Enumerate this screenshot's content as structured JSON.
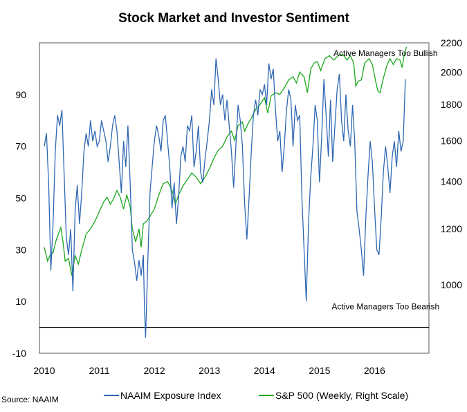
{
  "chart_data": {
    "type": "line",
    "title": "Stock Market and Investor Sentiment",
    "source": "Source: NAAIM",
    "x_tick_labels": [
      "2010",
      "2011",
      "2012",
      "2013",
      "2014",
      "2015",
      "2016"
    ],
    "x_range": [
      2010.0,
      2016.9
    ],
    "y_left": {
      "tick_labels": [
        "-10",
        "10",
        "30",
        "50",
        "70",
        "90"
      ],
      "ticks": [
        -10,
        10,
        30,
        50,
        70,
        90
      ],
      "range": [
        -10,
        110
      ]
    },
    "y_right": {
      "tick_labels": [
        "1000",
        "1200",
        "1400",
        "1600",
        "1800",
        "2000",
        "2200"
      ],
      "ticks": [
        1000,
        1200,
        1400,
        1600,
        1800,
        2000,
        2200
      ],
      "range": [
        800,
        2200
      ],
      "scale": "log"
    },
    "reference_line": {
      "axis": "left",
      "value": 0
    },
    "annotations": [
      {
        "text": "Active Managers Too Bullish",
        "x": 2016.2,
        "y": 106,
        "axis": "left"
      },
      {
        "text": "Active Managers Too Bearish",
        "x": 2016.2,
        "y": 8,
        "axis": "left"
      }
    ],
    "legend_position": "bottom",
    "series": [
      {
        "name": "NAAIM Exposure Index",
        "axis": "left",
        "color": "#2e67b3",
        "points": [
          [
            2010.0,
            70
          ],
          [
            2010.04,
            75
          ],
          [
            2010.08,
            55
          ],
          [
            2010.12,
            22
          ],
          [
            2010.16,
            40
          ],
          [
            2010.2,
            68
          ],
          [
            2010.24,
            82
          ],
          [
            2010.28,
            78
          ],
          [
            2010.32,
            84
          ],
          [
            2010.36,
            60
          ],
          [
            2010.4,
            35
          ],
          [
            2010.44,
            28
          ],
          [
            2010.48,
            38
          ],
          [
            2010.52,
            14
          ],
          [
            2010.56,
            45
          ],
          [
            2010.6,
            55
          ],
          [
            2010.64,
            40
          ],
          [
            2010.68,
            52
          ],
          [
            2010.72,
            68
          ],
          [
            2010.76,
            75
          ],
          [
            2010.8,
            70
          ],
          [
            2010.84,
            80
          ],
          [
            2010.88,
            72
          ],
          [
            2010.92,
            76
          ],
          [
            2010.96,
            70
          ],
          [
            2011.0,
            72
          ],
          [
            2011.04,
            80
          ],
          [
            2011.08,
            76
          ],
          [
            2011.12,
            72
          ],
          [
            2011.16,
            64
          ],
          [
            2011.2,
            70
          ],
          [
            2011.24,
            78
          ],
          [
            2011.28,
            82
          ],
          [
            2011.32,
            76
          ],
          [
            2011.36,
            64
          ],
          [
            2011.4,
            52
          ],
          [
            2011.44,
            72
          ],
          [
            2011.48,
            62
          ],
          [
            2011.52,
            78
          ],
          [
            2011.56,
            56
          ],
          [
            2011.6,
            30
          ],
          [
            2011.64,
            25
          ],
          [
            2011.68,
            18
          ],
          [
            2011.72,
            26
          ],
          [
            2011.76,
            20
          ],
          [
            2011.8,
            28
          ],
          [
            2011.82,
            8
          ],
          [
            2011.84,
            -4
          ],
          [
            2011.88,
            25
          ],
          [
            2011.92,
            52
          ],
          [
            2011.96,
            62
          ],
          [
            2012.0,
            72
          ],
          [
            2012.04,
            78
          ],
          [
            2012.08,
            74
          ],
          [
            2012.12,
            68
          ],
          [
            2012.16,
            80
          ],
          [
            2012.2,
            82
          ],
          [
            2012.24,
            72
          ],
          [
            2012.28,
            62
          ],
          [
            2012.32,
            46
          ],
          [
            2012.36,
            56
          ],
          [
            2012.4,
            40
          ],
          [
            2012.44,
            50
          ],
          [
            2012.48,
            66
          ],
          [
            2012.52,
            70
          ],
          [
            2012.56,
            64
          ],
          [
            2012.6,
            78
          ],
          [
            2012.64,
            76
          ],
          [
            2012.68,
            82
          ],
          [
            2012.72,
            62
          ],
          [
            2012.76,
            68
          ],
          [
            2012.8,
            78
          ],
          [
            2012.84,
            60
          ],
          [
            2012.88,
            56
          ],
          [
            2012.92,
            65
          ],
          [
            2012.96,
            72
          ],
          [
            2013.0,
            80
          ],
          [
            2013.04,
            92
          ],
          [
            2013.08,
            86
          ],
          [
            2013.12,
            104
          ],
          [
            2013.16,
            96
          ],
          [
            2013.2,
            86
          ],
          [
            2013.24,
            90
          ],
          [
            2013.28,
            80
          ],
          [
            2013.32,
            88
          ],
          [
            2013.36,
            78
          ],
          [
            2013.4,
            68
          ],
          [
            2013.44,
            54
          ],
          [
            2013.48,
            70
          ],
          [
            2013.52,
            86
          ],
          [
            2013.56,
            80
          ],
          [
            2013.6,
            70
          ],
          [
            2013.64,
            48
          ],
          [
            2013.68,
            34
          ],
          [
            2013.72,
            50
          ],
          [
            2013.76,
            68
          ],
          [
            2013.8,
            82
          ],
          [
            2013.84,
            88
          ],
          [
            2013.88,
            82
          ],
          [
            2013.92,
            92
          ],
          [
            2013.96,
            90
          ],
          [
            2014.0,
            94
          ],
          [
            2014.04,
            86
          ],
          [
            2014.08,
            102
          ],
          [
            2014.12,
            96
          ],
          [
            2014.16,
            100
          ],
          [
            2014.2,
            84
          ],
          [
            2014.24,
            72
          ],
          [
            2014.28,
            76
          ],
          [
            2014.32,
            60
          ],
          [
            2014.36,
            70
          ],
          [
            2014.4,
            84
          ],
          [
            2014.44,
            92
          ],
          [
            2014.48,
            88
          ],
          [
            2014.52,
            70
          ],
          [
            2014.56,
            86
          ],
          [
            2014.6,
            80
          ],
          [
            2014.64,
            82
          ],
          [
            2014.68,
            50
          ],
          [
            2014.72,
            30
          ],
          [
            2014.76,
            10
          ],
          [
            2014.8,
            40
          ],
          [
            2014.84,
            58
          ],
          [
            2014.88,
            70
          ],
          [
            2014.92,
            86
          ],
          [
            2014.96,
            80
          ],
          [
            2015.0,
            56
          ],
          [
            2015.04,
            74
          ],
          [
            2015.08,
            96
          ],
          [
            2015.12,
            82
          ],
          [
            2015.16,
            66
          ],
          [
            2015.2,
            88
          ],
          [
            2015.24,
            64
          ],
          [
            2015.28,
            78
          ],
          [
            2015.32,
            92
          ],
          [
            2015.36,
            98
          ],
          [
            2015.4,
            80
          ],
          [
            2015.44,
            72
          ],
          [
            2015.48,
            90
          ],
          [
            2015.52,
            76
          ],
          [
            2015.56,
            70
          ],
          [
            2015.6,
            86
          ],
          [
            2015.64,
            72
          ],
          [
            2015.68,
            45
          ],
          [
            2015.72,
            38
          ],
          [
            2015.76,
            30
          ],
          [
            2015.8,
            20
          ],
          [
            2015.84,
            42
          ],
          [
            2015.88,
            58
          ],
          [
            2015.92,
            72
          ],
          [
            2015.96,
            64
          ],
          [
            2016.0,
            46
          ],
          [
            2016.04,
            30
          ],
          [
            2016.08,
            28
          ],
          [
            2016.12,
            42
          ],
          [
            2016.16,
            60
          ],
          [
            2016.2,
            70
          ],
          [
            2016.24,
            62
          ],
          [
            2016.28,
            52
          ],
          [
            2016.32,
            66
          ],
          [
            2016.36,
            72
          ],
          [
            2016.4,
            62
          ],
          [
            2016.44,
            76
          ],
          [
            2016.48,
            68
          ],
          [
            2016.52,
            72
          ],
          [
            2016.56,
            96
          ]
        ]
      },
      {
        "name": "S&P 500 (Weekly, Right Scale)",
        "axis": "right",
        "color": "#1aa71a",
        "points": [
          [
            2010.0,
            1130
          ],
          [
            2010.06,
            1080
          ],
          [
            2010.1,
            1100
          ],
          [
            2010.16,
            1110
          ],
          [
            2010.22,
            1160
          ],
          [
            2010.3,
            1205
          ],
          [
            2010.34,
            1150
          ],
          [
            2010.38,
            1080
          ],
          [
            2010.44,
            1090
          ],
          [
            2010.5,
            1030
          ],
          [
            2010.56,
            1100
          ],
          [
            2010.62,
            1070
          ],
          [
            2010.68,
            1120
          ],
          [
            2010.76,
            1180
          ],
          [
            2010.84,
            1200
          ],
          [
            2010.92,
            1230
          ],
          [
            2011.0,
            1270
          ],
          [
            2011.08,
            1310
          ],
          [
            2011.14,
            1330
          ],
          [
            2011.2,
            1300
          ],
          [
            2011.26,
            1325
          ],
          [
            2011.32,
            1360
          ],
          [
            2011.38,
            1330
          ],
          [
            2011.44,
            1280
          ],
          [
            2011.5,
            1340
          ],
          [
            2011.56,
            1290
          ],
          [
            2011.6,
            1200
          ],
          [
            2011.66,
            1150
          ],
          [
            2011.72,
            1200
          ],
          [
            2011.76,
            1130
          ],
          [
            2011.8,
            1220
          ],
          [
            2011.86,
            1230
          ],
          [
            2011.92,
            1250
          ],
          [
            2012.0,
            1280
          ],
          [
            2012.08,
            1340
          ],
          [
            2012.16,
            1390
          ],
          [
            2012.24,
            1400
          ],
          [
            2012.32,
            1360
          ],
          [
            2012.38,
            1300
          ],
          [
            2012.44,
            1340
          ],
          [
            2012.52,
            1380
          ],
          [
            2012.6,
            1410
          ],
          [
            2012.68,
            1440
          ],
          [
            2012.76,
            1420
          ],
          [
            2012.84,
            1390
          ],
          [
            2012.92,
            1420
          ],
          [
            2013.0,
            1460
          ],
          [
            2013.08,
            1510
          ],
          [
            2013.16,
            1550
          ],
          [
            2013.24,
            1570
          ],
          [
            2013.32,
            1620
          ],
          [
            2013.4,
            1650
          ],
          [
            2013.46,
            1600
          ],
          [
            2013.52,
            1680
          ],
          [
            2013.6,
            1700
          ],
          [
            2013.64,
            1650
          ],
          [
            2013.7,
            1690
          ],
          [
            2013.76,
            1720
          ],
          [
            2013.84,
            1770
          ],
          [
            2013.92,
            1800
          ],
          [
            2014.0,
            1840
          ],
          [
            2014.06,
            1750
          ],
          [
            2014.12,
            1850
          ],
          [
            2014.2,
            1870
          ],
          [
            2014.28,
            1860
          ],
          [
            2014.36,
            1900
          ],
          [
            2014.44,
            1950
          ],
          [
            2014.52,
            1970
          ],
          [
            2014.58,
            1930
          ],
          [
            2014.64,
            2000
          ],
          [
            2014.72,
            1970
          ],
          [
            2014.78,
            1870
          ],
          [
            2014.84,
            2020
          ],
          [
            2014.9,
            2060
          ],
          [
            2014.96,
            2070
          ],
          [
            2015.02,
            2010
          ],
          [
            2015.1,
            2090
          ],
          [
            2015.18,
            2110
          ],
          [
            2015.26,
            2080
          ],
          [
            2015.34,
            2110
          ],
          [
            2015.42,
            2120
          ],
          [
            2015.5,
            2080
          ],
          [
            2015.56,
            2110
          ],
          [
            2015.62,
            2060
          ],
          [
            2015.66,
            1910
          ],
          [
            2015.7,
            1940
          ],
          [
            2015.76,
            1950
          ],
          [
            2015.82,
            2060
          ],
          [
            2015.9,
            2090
          ],
          [
            2015.96,
            2050
          ],
          [
            2016.02,
            1940
          ],
          [
            2016.06,
            1880
          ],
          [
            2016.1,
            1870
          ],
          [
            2016.16,
            1960
          ],
          [
            2016.22,
            2040
          ],
          [
            2016.28,
            2090
          ],
          [
            2016.34,
            2050
          ],
          [
            2016.4,
            2090
          ],
          [
            2016.46,
            2080
          ],
          [
            2016.5,
            2030
          ],
          [
            2016.54,
            2120
          ],
          [
            2016.58,
            2170
          ]
        ]
      }
    ]
  }
}
